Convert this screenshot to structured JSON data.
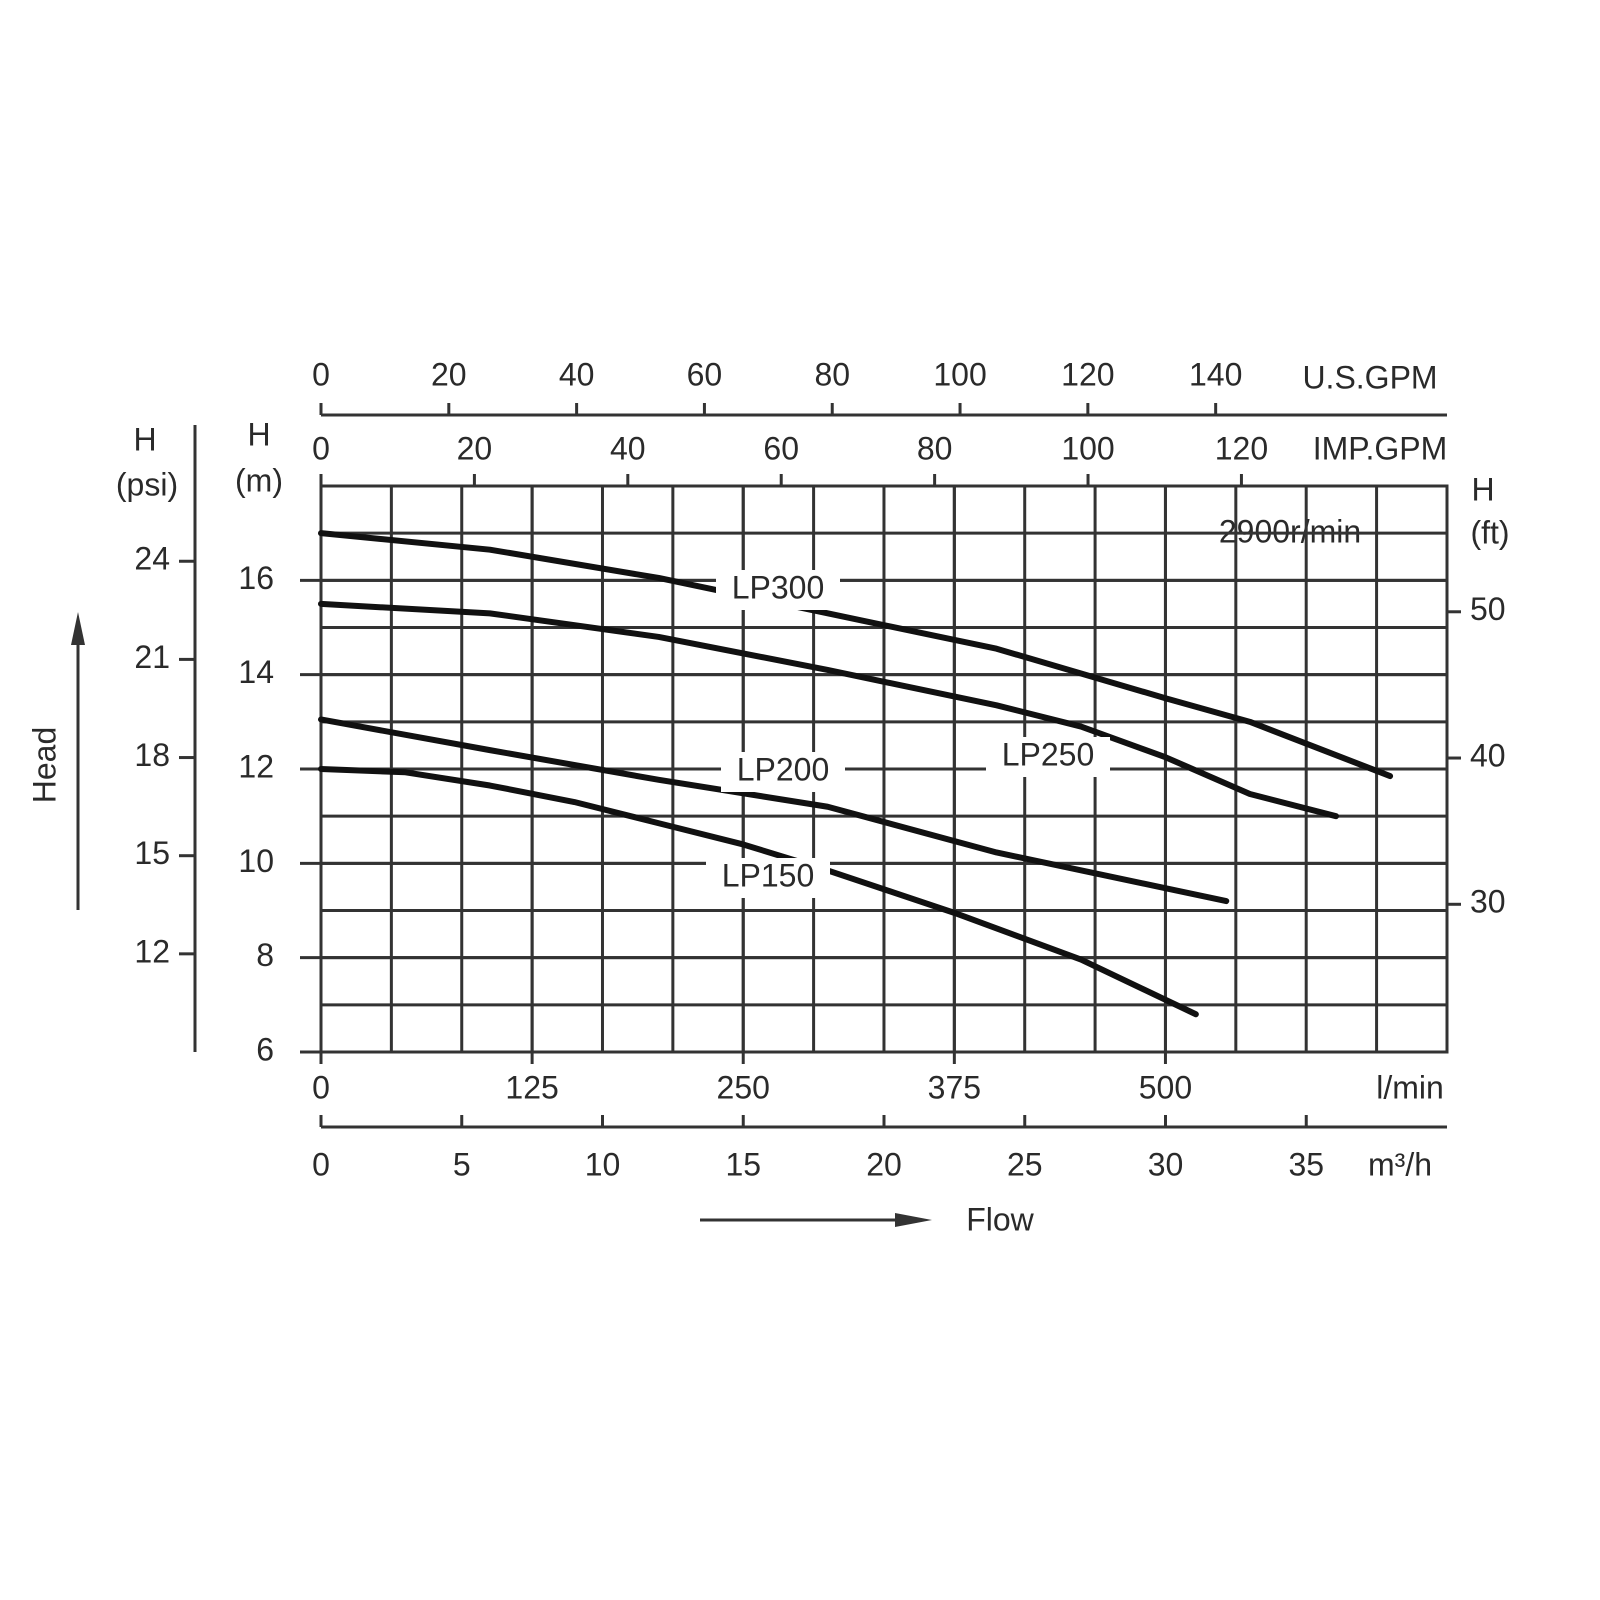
{
  "chart_data": {
    "type": "line",
    "annotation": "2900r/min",
    "xlabel": "l/min",
    "xlim": [
      0,
      666.7
    ],
    "xticks": [
      0,
      125,
      250,
      375,
      500
    ],
    "ylabel": [
      "H",
      "(m)"
    ],
    "ylim": [
      6,
      18
    ],
    "yticks": [
      6,
      8,
      10,
      12,
      14,
      16
    ],
    "grid": true,
    "axis_titles": {
      "y": "Head",
      "x": "Flow"
    },
    "secondary_axes": [
      {
        "side": "bottom",
        "label": "m³/h",
        "lim": [
          0,
          40
        ],
        "ticks": [
          0,
          5,
          10,
          15,
          20,
          25,
          30,
          35
        ]
      },
      {
        "side": "top",
        "label": "IMP.GPM",
        "lim": [
          0,
          146.8
        ],
        "ticks": [
          0,
          20,
          40,
          60,
          80,
          100,
          120
        ]
      },
      {
        "side": "top",
        "label": "U.S.GPM",
        "lim": [
          0,
          176.2
        ],
        "ticks": [
          0,
          20,
          40,
          60,
          80,
          100,
          120,
          140
        ]
      },
      {
        "side": "left",
        "label": [
          "H",
          "(psi)"
        ],
        "lim": [
          9,
          26.3
        ],
        "ticks": [
          12,
          15,
          18,
          21,
          24
        ]
      },
      {
        "side": "right",
        "label": [
          "H",
          "(ft)"
        ],
        "lim": [
          19.9,
          58.6
        ],
        "ticks": [
          30,
          40,
          50
        ]
      }
    ],
    "series": [
      {
        "name": "LP300",
        "color": "#111111",
        "x": [
          0,
          100,
          200,
          300,
          400,
          500,
          550,
          633
        ],
        "values": [
          17.0,
          16.65,
          16.05,
          15.3,
          14.55,
          13.5,
          13.0,
          11.85
        ]
      },
      {
        "name": "LP250",
        "color": "#111111",
        "x": [
          0,
          100,
          200,
          300,
          400,
          450,
          500,
          550,
          601
        ],
        "values": [
          15.5,
          15.3,
          14.8,
          14.1,
          13.35,
          12.9,
          12.25,
          11.47,
          11.0
        ]
      },
      {
        "name": "LP200",
        "color": "#111111",
        "x": [
          0,
          100,
          200,
          300,
          400,
          536
        ],
        "values": [
          13.05,
          12.4,
          11.77,
          11.2,
          10.23,
          9.2
        ]
      },
      {
        "name": "LP150",
        "color": "#111111",
        "x": [
          0,
          50,
          100,
          150,
          200,
          250,
          300,
          375,
          450,
          518
        ],
        "values": [
          12.0,
          11.93,
          11.65,
          11.3,
          10.85,
          10.4,
          9.85,
          8.95,
          7.96,
          6.8
        ]
      }
    ]
  }
}
